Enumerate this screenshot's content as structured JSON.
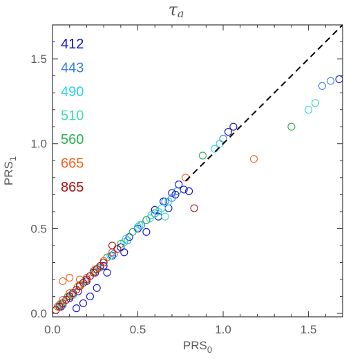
{
  "chart_data": {
    "type": "scatter",
    "title": "τ",
    "title_subscript": "a",
    "xlabel": "PRS",
    "xlabel_subscript": "0",
    "ylabel": "PRS",
    "ylabel_subscript": "1",
    "xlim": [
      0,
      1.7
    ],
    "ylim": [
      -0.02,
      1.7
    ],
    "xticks": [
      0.0,
      0.5,
      1.0,
      1.5
    ],
    "yticks": [
      0.0,
      0.5,
      1.0,
      1.5
    ],
    "xtick_labels": [
      "0.0",
      "0.5",
      "1.0",
      "1.5"
    ],
    "ytick_labels": [
      "0.0",
      "0.5",
      "1.0",
      "1.5"
    ],
    "grid": false,
    "legend_placement": "top-left",
    "reference_line": {
      "style": "dashed",
      "from": [
        0.78,
        0.78
      ],
      "to": [
        1.7,
        1.7
      ]
    },
    "series": [
      {
        "name": "412",
        "color": "#1010c8",
        "points": [
          [
            0.05,
            0.04
          ],
          [
            0.1,
            0.09
          ],
          [
            0.15,
            0.13
          ],
          [
            0.2,
            0.19
          ],
          [
            0.25,
            0.24
          ],
          [
            0.3,
            0.28
          ],
          [
            0.35,
            0.34
          ],
          [
            0.4,
            0.39
          ],
          [
            0.45,
            0.45
          ],
          [
            0.5,
            0.5
          ],
          [
            0.55,
            0.55
          ],
          [
            0.6,
            0.61
          ],
          [
            0.65,
            0.66
          ],
          [
            0.7,
            0.71
          ],
          [
            0.74,
            0.76
          ],
          [
            0.77,
            0.73
          ],
          [
            0.8,
            0.72
          ],
          [
            1.03,
            1.07
          ],
          [
            1.06,
            1.1
          ],
          [
            1.68,
            1.38
          ],
          [
            0.18,
            0.06
          ],
          [
            0.22,
            0.1
          ],
          [
            0.26,
            0.15
          ],
          [
            0.14,
            0.03
          ],
          [
            0.32,
            0.24
          ],
          [
            0.42,
            0.36
          ],
          [
            0.55,
            0.48
          ],
          [
            0.62,
            0.57
          ],
          [
            0.68,
            0.62
          ],
          [
            0.72,
            0.7
          ]
        ]
      },
      {
        "name": "443",
        "color": "#3a80e0",
        "points": [
          [
            0.06,
            0.05
          ],
          [
            0.12,
            0.11
          ],
          [
            0.2,
            0.2
          ],
          [
            0.28,
            0.27
          ],
          [
            0.36,
            0.35
          ],
          [
            0.44,
            0.43
          ],
          [
            0.52,
            0.52
          ],
          [
            0.6,
            0.59
          ],
          [
            0.66,
            0.66
          ],
          [
            0.7,
            0.68
          ],
          [
            0.73,
            0.72
          ],
          [
            1.0,
            1.03
          ],
          [
            1.58,
            1.34
          ],
          [
            1.63,
            1.37
          ]
        ]
      },
      {
        "name": "490",
        "color": "#30d0e8",
        "points": [
          [
            0.05,
            0.05
          ],
          [
            0.1,
            0.1
          ],
          [
            0.18,
            0.18
          ],
          [
            0.26,
            0.26
          ],
          [
            0.34,
            0.34
          ],
          [
            0.42,
            0.42
          ],
          [
            0.5,
            0.51
          ],
          [
            0.58,
            0.58
          ],
          [
            0.64,
            0.62
          ],
          [
            0.68,
            0.66
          ],
          [
            0.95,
            0.97
          ],
          [
            0.98,
            1.0
          ],
          [
            1.5,
            1.2
          ]
        ]
      },
      {
        "name": "510",
        "color": "#3ee0b0",
        "points": [
          [
            0.05,
            0.06
          ],
          [
            0.11,
            0.11
          ],
          [
            0.19,
            0.19
          ],
          [
            0.27,
            0.27
          ],
          [
            0.35,
            0.36
          ],
          [
            0.43,
            0.44
          ],
          [
            0.51,
            0.52
          ],
          [
            0.57,
            0.56
          ],
          [
            0.62,
            0.6
          ],
          [
            0.66,
            0.57
          ],
          [
            1.54,
            1.24
          ]
        ]
      },
      {
        "name": "560",
        "color": "#28b050",
        "points": [
          [
            0.04,
            0.05
          ],
          [
            0.09,
            0.1
          ],
          [
            0.16,
            0.17
          ],
          [
            0.24,
            0.25
          ],
          [
            0.32,
            0.33
          ],
          [
            0.4,
            0.41
          ],
          [
            0.47,
            0.48
          ],
          [
            0.55,
            0.55
          ],
          [
            0.88,
            0.93
          ],
          [
            1.4,
            1.1
          ]
        ]
      },
      {
        "name": "665",
        "color": "#f06020",
        "points": [
          [
            0.03,
            0.04
          ],
          [
            0.06,
            0.08
          ],
          [
            0.1,
            0.12
          ],
          [
            0.15,
            0.16
          ],
          [
            0.2,
            0.21
          ],
          [
            0.25,
            0.26
          ],
          [
            0.3,
            0.31
          ],
          [
            0.35,
            0.36
          ],
          [
            0.06,
            0.19
          ],
          [
            0.1,
            0.21
          ],
          [
            0.16,
            0.2
          ],
          [
            0.78,
            0.8
          ],
          [
            1.18,
            0.91
          ]
        ]
      },
      {
        "name": "865",
        "color": "#b01010",
        "points": [
          [
            0.02,
            0.02
          ],
          [
            0.04,
            0.04
          ],
          [
            0.06,
            0.06
          ],
          [
            0.08,
            0.08
          ],
          [
            0.1,
            0.1
          ],
          [
            0.12,
            0.12
          ],
          [
            0.14,
            0.14
          ],
          [
            0.16,
            0.16
          ],
          [
            0.18,
            0.18
          ],
          [
            0.2,
            0.2
          ],
          [
            0.22,
            0.22
          ],
          [
            0.24,
            0.24
          ],
          [
            0.26,
            0.26
          ],
          [
            0.28,
            0.28
          ],
          [
            0.3,
            0.3
          ],
          [
            0.35,
            0.4
          ],
          [
            0.38,
            0.38
          ],
          [
            0.83,
            0.62
          ]
        ]
      }
    ]
  }
}
